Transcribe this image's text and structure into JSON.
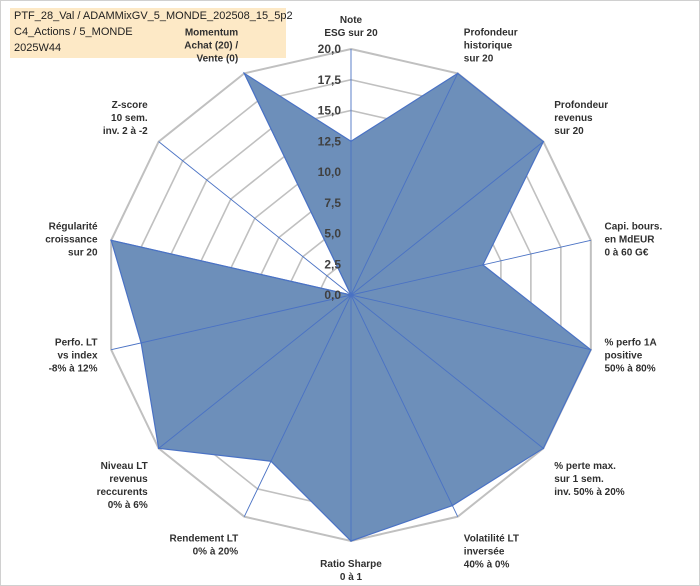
{
  "title_lines": [
    "PTF_28_Val / ADAMMixGV_5_MONDE_202508_15_5p2",
    "C4_Actions / 5_MONDE",
    "2025W44"
  ],
  "chart_data": {
    "type": "radar",
    "title": "PTF_28_Val / ADAMMixGV_5_MONDE_202508_15_5p2 — C4_Actions / 5_MONDE — 2025W44",
    "rmin": 0,
    "rmax": 20,
    "tick_values": [
      0,
      2.5,
      5,
      7.5,
      10,
      12.5,
      15,
      17.5,
      20
    ],
    "tick_labels": [
      "0,0",
      "2,5",
      "5,0",
      "7,5",
      "10,0",
      "12,5",
      "15,0",
      "17,5",
      "20,0"
    ],
    "categories": [
      {
        "lines": [
          "Note",
          "ESG sur 20"
        ]
      },
      {
        "lines": [
          "Profondeur",
          "historique",
          "sur 20"
        ]
      },
      {
        "lines": [
          "Profondeur",
          "revenus",
          "sur 20"
        ]
      },
      {
        "lines": [
          "Capi. bours.",
          "en MdEUR",
          "0 à 60 G€"
        ]
      },
      {
        "lines": [
          "% perfo 1A",
          "positive",
          "50% à 80%"
        ]
      },
      {
        "lines": [
          "% perte max.",
          "sur 1 sem.",
          "inv. 50% à 20%"
        ]
      },
      {
        "lines": [
          "Volatilité LT",
          "inversée",
          "40% à 0%"
        ]
      },
      {
        "lines": [
          "Ratio Sharpe",
          "0 à 1"
        ]
      },
      {
        "lines": [
          "Rendement LT",
          "0% à 20%"
        ]
      },
      {
        "lines": [
          "Niveau LT",
          "revenus",
          "reccurents",
          "0% à 6%"
        ]
      },
      {
        "lines": [
          "Perfo. LT",
          "vs index",
          "-8% à 12%"
        ]
      },
      {
        "lines": [
          "Régularité",
          "croissance",
          "sur 20"
        ]
      },
      {
        "lines": [
          "Z-score",
          "10 sem.",
          "inv. 2 à -2"
        ]
      },
      {
        "lines": [
          "Momentum",
          "Achat (20) /",
          "Vente (0)"
        ]
      }
    ],
    "series": [
      {
        "name": "PTF_28_Val",
        "values": [
          12.5,
          20,
          20,
          11,
          20,
          20,
          19,
          20,
          15,
          20,
          17.5,
          20,
          0,
          20
        ]
      }
    ],
    "colors": {
      "fill": "#6d8fba",
      "stroke": "#4a72c4",
      "grid": "#c0c0c0",
      "spoke": "#4a72c4"
    }
  }
}
